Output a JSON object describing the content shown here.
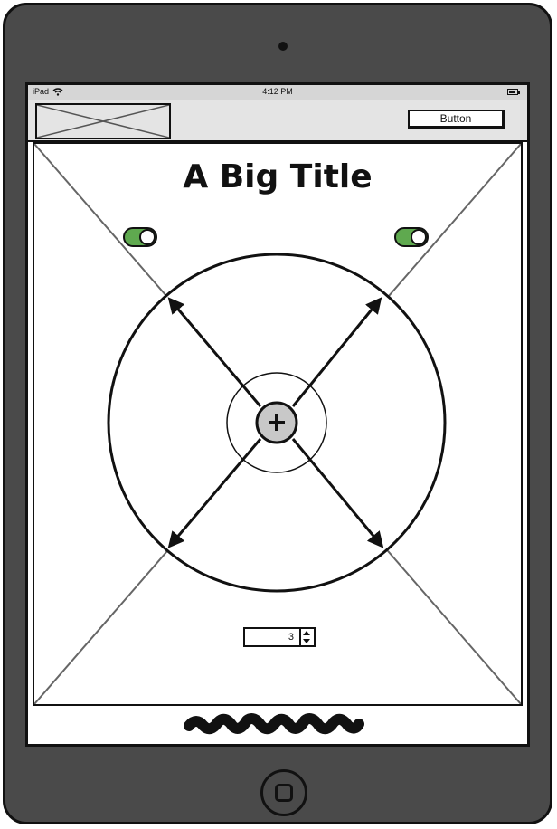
{
  "status_bar": {
    "device": "iPad",
    "time": "4:12 PM",
    "wifi_icon": "wifi-icon",
    "battery_icon": "battery-icon"
  },
  "nav_bar": {
    "logo_placeholder": "image-placeholder-icon",
    "button_label": "Button"
  },
  "content": {
    "title": "A Big Title",
    "background": "image-placeholder-icon"
  },
  "toggles": [
    {
      "state": "on"
    },
    {
      "state": "on"
    }
  ],
  "joystick": {
    "center_icon": "plus-icon",
    "arrow_icons": [
      "arrow-up-left-icon",
      "arrow-up-right-icon",
      "arrow-down-left-icon",
      "arrow-down-right-icon"
    ]
  },
  "stepper": {
    "value": "3"
  },
  "footer": {
    "scribble_icon": "scribble-text-icon"
  },
  "colors": {
    "toggle_on": "#5fa94f",
    "device_body": "#4a4a4a",
    "nav_bg": "#e4e4e4",
    "center_button": "#c8c8c8"
  }
}
